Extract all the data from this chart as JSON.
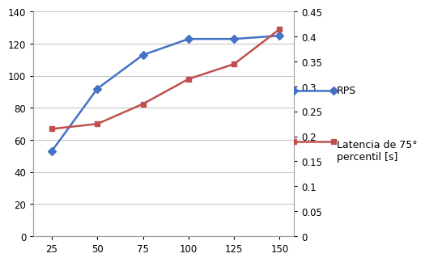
{
  "x": [
    25,
    50,
    75,
    100,
    125,
    150
  ],
  "rps": [
    53,
    92,
    113,
    123,
    123,
    125
  ],
  "latency": [
    0.215,
    0.225,
    0.265,
    0.315,
    0.345,
    0.415
  ],
  "rps_color": "#4472C4",
  "latency_color": "#C0504D",
  "rps_label": "RPS",
  "latency_label": "Latencia de 75°\npercentil [s]",
  "left_ylim": [
    0,
    140
  ],
  "right_ylim": [
    0,
    0.45
  ],
  "left_yticks": [
    0,
    20,
    40,
    60,
    80,
    100,
    120,
    140
  ],
  "right_yticks": [
    0,
    0.05,
    0.1,
    0.15,
    0.2,
    0.25,
    0.3,
    0.35,
    0.4,
    0.45
  ],
  "xticks": [
    25,
    50,
    75,
    100,
    125,
    150
  ],
  "xlim": [
    15,
    158
  ],
  "bg_color": "#FFFFFF",
  "grid_color": "#C8C8C8",
  "marker_rps": "D",
  "marker_latency": "s",
  "linewidth": 1.8,
  "markersize": 5,
  "tick_fontsize": 8.5,
  "legend_fontsize": 9
}
